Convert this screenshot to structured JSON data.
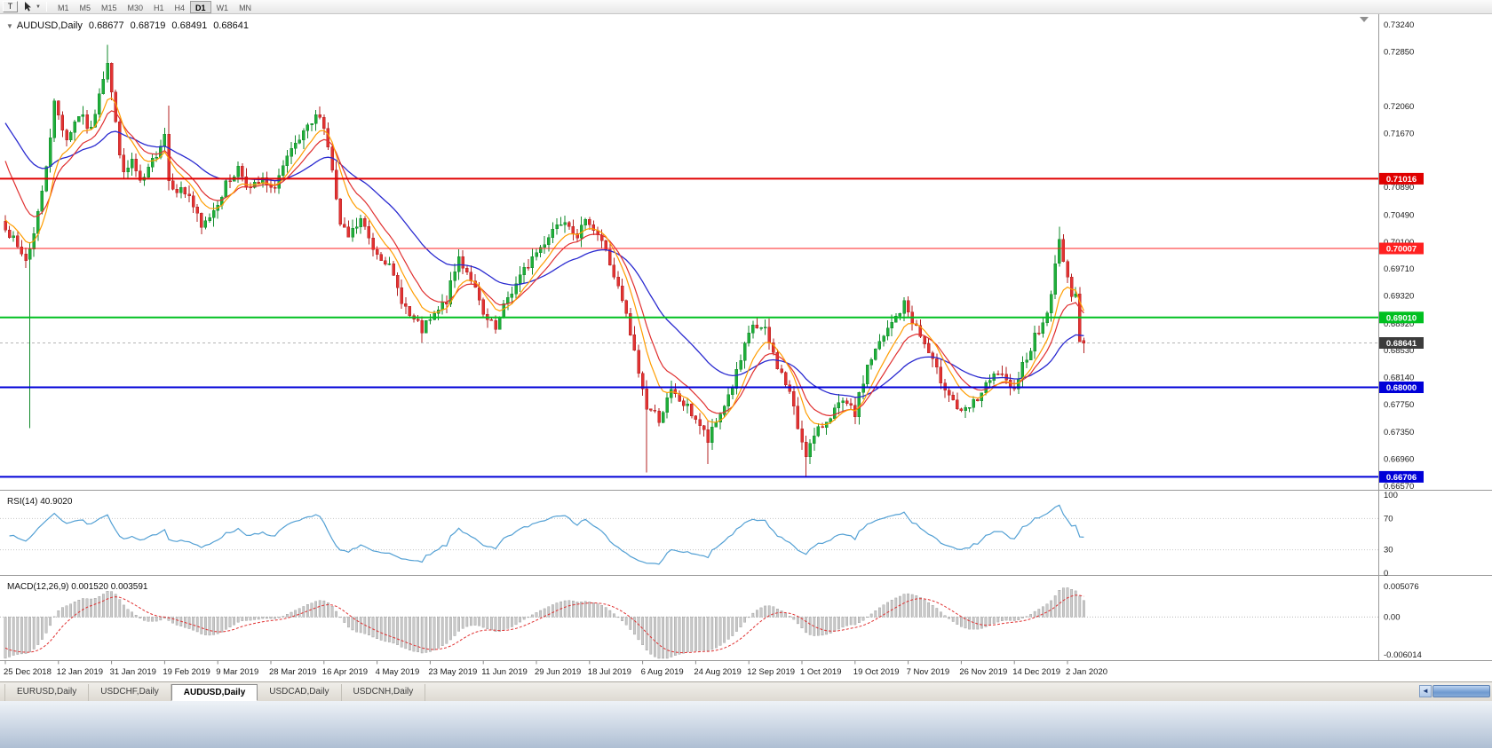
{
  "toolbar": {
    "t_button": "T",
    "timeframes": [
      "M1",
      "M5",
      "M15",
      "M30",
      "H1",
      "H4",
      "D1",
      "W1",
      "MN"
    ],
    "active_timeframe": "D1"
  },
  "chart_header": {
    "collapse_icon": "▼",
    "symbol": "AUDUSD,Daily",
    "open": "0.68677",
    "high": "0.68719",
    "low": "0.68491",
    "close": "0.68641"
  },
  "price_axis": {
    "ticks": [
      "0.73240",
      "0.72850",
      "0.72060",
      "0.71670",
      "0.70890",
      "0.70490",
      "0.70100",
      "0.69710",
      "0.69320",
      "0.68920",
      "0.68530",
      "0.68140",
      "0.67750",
      "0.67350",
      "0.66960",
      "0.66570"
    ]
  },
  "date_axis": {
    "labels": [
      "25 Dec 2018",
      "12 Jan 2019",
      "31 Jan 2019",
      "19 Feb 2019",
      "9 Mar 2019",
      "28 Mar 2019",
      "16 Apr 2019",
      "4 May 2019",
      "23 May 2019",
      "11 Jun 2019",
      "29 Jun 2019",
      "18 Jul 2019",
      "6 Aug 2019",
      "24 Aug 2019",
      "12 Sep 2019",
      "1 Oct 2019",
      "19 Oct 2019",
      "7 Nov 2019",
      "26 Nov 2019",
      "14 Dec 2019",
      "2 Jan 2020"
    ]
  },
  "indicators": {
    "rsi": {
      "label": "RSI(14) 40.9020",
      "levels": [
        "100",
        "70",
        "30",
        "0"
      ],
      "level_values": [
        100,
        70,
        30,
        0
      ]
    },
    "macd": {
      "label": "MACD(12,26,9) 0.001520 0.003591",
      "ticks": [
        "0.005076",
        "0.00",
        "-0.006014"
      ]
    }
  },
  "tabs": {
    "items": [
      "EURUSD,Daily",
      "USDCHF,Daily",
      "AUDUSD,Daily",
      "USDCAD,Daily",
      "USDCNH,Daily"
    ],
    "active": "AUDUSD,Daily"
  },
  "chart_data": {
    "type": "candlestick",
    "symbol": "AUDUSD",
    "timeframe": "Daily",
    "last_ohlc": {
      "open": 0.68677,
      "high": 0.68719,
      "low": 0.68491,
      "close": 0.68641
    },
    "bar_count": 265,
    "first_open": 0.704,
    "y_range": {
      "top": 0.7324,
      "bottom": 0.6657
    },
    "current_price": {
      "value": 0.68641,
      "label": "0.68641",
      "bg": "#3c3c3c"
    },
    "hlines": [
      {
        "value": 0.71016,
        "label": "0.71016",
        "color": "#e00000",
        "width": 2
      },
      {
        "value": 0.70007,
        "label": "0.70007",
        "color": "#ff2020",
        "width": 1
      },
      {
        "value": 0.6901,
        "label": "0.69010",
        "color": "#00c020",
        "width": 2
      },
      {
        "value": 0.68,
        "label": "0.68000",
        "color": "#0000d8",
        "width": 2
      },
      {
        "value": 0.66706,
        "label": "0.66706",
        "color": "#0000d8",
        "width": 2
      }
    ],
    "anchors": [
      [
        0,
        0.7035
      ],
      [
        3,
        0.7
      ],
      [
        5,
        0.6985
      ],
      [
        6,
        0.7
      ],
      [
        9,
        0.708
      ],
      [
        12,
        0.721
      ],
      [
        15,
        0.716
      ],
      [
        18,
        0.7195
      ],
      [
        21,
        0.717
      ],
      [
        23,
        0.723
      ],
      [
        25,
        0.7272
      ],
      [
        27,
        0.718
      ],
      [
        29,
        0.7105
      ],
      [
        31,
        0.7128
      ],
      [
        33,
        0.7092
      ],
      [
        35,
        0.7112
      ],
      [
        37,
        0.714
      ],
      [
        39,
        0.7168
      ],
      [
        40,
        0.71
      ],
      [
        42,
        0.7088
      ],
      [
        45,
        0.7078
      ],
      [
        48,
        0.7028
      ],
      [
        51,
        0.7058
      ],
      [
        54,
        0.7092
      ],
      [
        57,
        0.7118
      ],
      [
        60,
        0.7086
      ],
      [
        63,
        0.7098
      ],
      [
        65,
        0.7082
      ],
      [
        68,
        0.7118
      ],
      [
        71,
        0.7148
      ],
      [
        74,
        0.7172
      ],
      [
        77,
        0.7198
      ],
      [
        79,
        0.715
      ],
      [
        82,
        0.7032
      ],
      [
        84,
        0.7016
      ],
      [
        87,
        0.7042
      ],
      [
        90,
        0.7002
      ],
      [
        93,
        0.6986
      ],
      [
        96,
        0.6942
      ],
      [
        99,
        0.6902
      ],
      [
        102,
        0.6882
      ],
      [
        105,
        0.6902
      ],
      [
        108,
        0.6926
      ],
      [
        111,
        0.6988
      ],
      [
        114,
        0.6958
      ],
      [
        117,
        0.6902
      ],
      [
        120,
        0.6882
      ],
      [
        123,
        0.693
      ],
      [
        126,
        0.6958
      ],
      [
        129,
        0.6988
      ],
      [
        131,
        0.7002
      ],
      [
        134,
        0.703
      ],
      [
        137,
        0.7046
      ],
      [
        140,
        0.7022
      ],
      [
        143,
        0.7042
      ],
      [
        146,
        0.7012
      ],
      [
        149,
        0.6962
      ],
      [
        152,
        0.6902
      ],
      [
        155,
        0.6822
      ],
      [
        157,
        0.6772
      ],
      [
        160,
        0.6756
      ],
      [
        163,
        0.6792
      ],
      [
        166,
        0.6776
      ],
      [
        169,
        0.6756
      ],
      [
        172,
        0.6722
      ],
      [
        175,
        0.6762
      ],
      [
        178,
        0.6802
      ],
      [
        181,
        0.6856
      ],
      [
        183,
        0.689
      ],
      [
        186,
        0.688
      ],
      [
        189,
        0.6832
      ],
      [
        192,
        0.6792
      ],
      [
        194,
        0.6742
      ],
      [
        196,
        0.6706
      ],
      [
        199,
        0.6736
      ],
      [
        202,
        0.6762
      ],
      [
        205,
        0.6776
      ],
      [
        208,
        0.6762
      ],
      [
        211,
        0.6832
      ],
      [
        214,
        0.6862
      ],
      [
        217,
        0.6892
      ],
      [
        220,
        0.692
      ],
      [
        222,
        0.6898
      ],
      [
        225,
        0.6862
      ],
      [
        228,
        0.6822
      ],
      [
        231,
        0.6792
      ],
      [
        234,
        0.676
      ],
      [
        237,
        0.6776
      ],
      [
        240,
        0.68
      ],
      [
        243,
        0.6822
      ],
      [
        246,
        0.6794
      ],
      [
        248,
        0.6818
      ],
      [
        250,
        0.6846
      ],
      [
        252,
        0.6872
      ],
      [
        254,
        0.6892
      ],
      [
        256,
        0.693
      ],
      [
        258,
        0.7021
      ],
      [
        259,
        0.6983
      ],
      [
        260,
        0.6952
      ],
      [
        261,
        0.6938
      ],
      [
        262,
        0.6942
      ],
      [
        263,
        0.6866
      ],
      [
        264,
        0.68641
      ]
    ],
    "overrides": {
      "6": {
        "o": 0.6985,
        "h": 0.701,
        "l": 0.6741,
        "c": 0.7
      },
      "25": {
        "h": 0.7295
      },
      "40": {
        "h": 0.7207,
        "l": 0.7085
      },
      "77": {
        "h": 0.7206
      },
      "102": {
        "l": 0.6865
      },
      "157": {
        "l": 0.6677
      },
      "172": {
        "l": 0.6689
      },
      "196": {
        "l": 0.66706
      },
      "220": {
        "h": 0.693
      },
      "258": {
        "h": 0.7032
      },
      "263": {
        "c": 0.6866
      },
      "264": {
        "o": 0.68677,
        "h": 0.68719,
        "l": 0.68491,
        "c": 0.68641
      }
    },
    "colors": {
      "up": "#1fae3a",
      "up_stroke": "#128a2b",
      "down": "#e23232",
      "down_stroke": "#b32222",
      "ma_fast": "#ff9d00",
      "ma_mid": "#e03030",
      "ma_slow": "#2a2ad0",
      "rsi": "#53a0d4",
      "macd_hist": "#c9c9c9",
      "macd_hist_stroke": "#979797",
      "macd_signal": "#e03030",
      "axis_text": "#1a1a1a"
    },
    "rsi_range": [
      0,
      100
    ],
    "macd_range": [
      -0.006014,
      0.005076
    ]
  }
}
